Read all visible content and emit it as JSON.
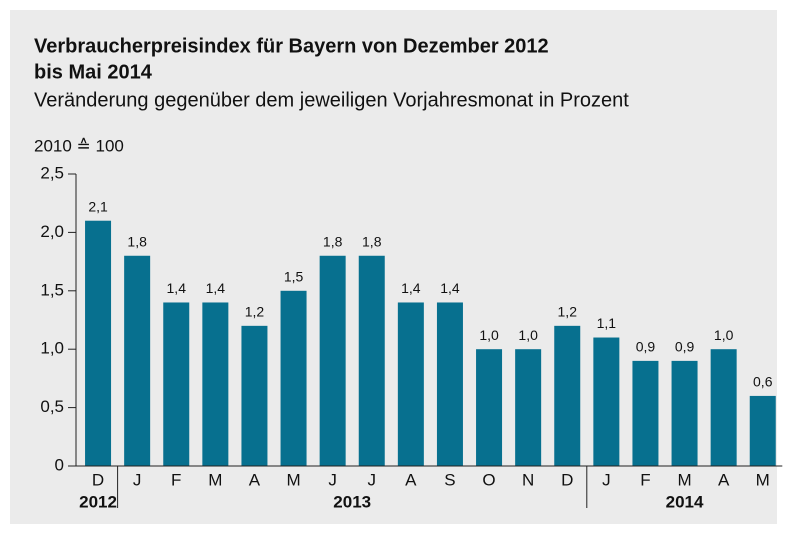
{
  "chart_data": {
    "type": "bar",
    "title": [
      "Verbraucherpreisindex für Bayern von Dezember 2012",
      "bis Mai 2014"
    ],
    "subtitle": "Veränderung gegenüber dem jeweiligen Vorjahresmonat in Prozent",
    "y_label": "2010 ≙ 100",
    "categories": [
      "D",
      "J",
      "F",
      "M",
      "A",
      "M",
      "J",
      "J",
      "A",
      "S",
      "O",
      "N",
      "D",
      "J",
      "F",
      "M",
      "A",
      "M"
    ],
    "values": [
      2.1,
      1.8,
      1.4,
      1.4,
      1.2,
      1.5,
      1.8,
      1.8,
      1.4,
      1.4,
      1.0,
      1.0,
      1.2,
      1.1,
      0.9,
      0.9,
      1.0,
      0.6
    ],
    "value_labels": [
      "2,1",
      "1,8",
      "1,4",
      "1,4",
      "1,2",
      "1,5",
      "1,8",
      "1,8",
      "1,4",
      "1,4",
      "1,0",
      "1,0",
      "1,2",
      "1,1",
      "0,9",
      "0,9",
      "1,0",
      "0,6"
    ],
    "year_groups": [
      {
        "label": "2012",
        "span": [
          0,
          0
        ]
      },
      {
        "label": "2013",
        "span": [
          1,
          12
        ]
      },
      {
        "label": "2014",
        "span": [
          13,
          17
        ]
      }
    ],
    "color": "#07708f",
    "ylim": [
      0,
      2.5
    ],
    "yticks": [
      0,
      {
        "value": 0.5,
        "label": "0,5"
      },
      {
        "value": 1.0,
        "label": "1,0"
      },
      {
        "value": 1.5,
        "label": "1,5"
      },
      {
        "value": 2.0,
        "label": "2,0"
      },
      {
        "value": 2.5,
        "label": "2,5"
      }
    ]
  }
}
